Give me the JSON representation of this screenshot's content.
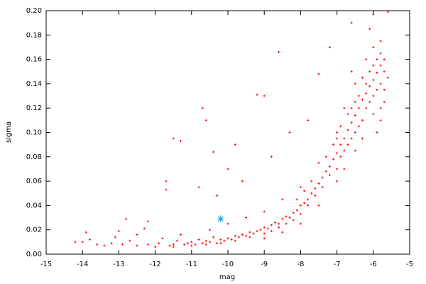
{
  "chart_data": {
    "type": "scatter",
    "x_label": "mag",
    "y_label": "sigma",
    "xlim": [
      -15,
      -5
    ],
    "xticks": [
      -15,
      -14,
      -13,
      -12,
      -11,
      -10,
      -9,
      -8,
      -7,
      -6,
      -5
    ],
    "ylim": [
      0,
      0.2
    ],
    "yticks": [
      {
        "value": 0,
        "label": "0.00"
      },
      {
        "value": 0.02,
        "label": "0.02"
      },
      {
        "value": 0.04,
        "label": "0.04"
      },
      {
        "value": 0.06,
        "label": "0.06"
      },
      {
        "value": 0.08,
        "label": "0.08"
      },
      {
        "value": 0.1,
        "label": "0.10"
      },
      {
        "value": 0.12,
        "label": "0.12"
      },
      {
        "value": 0.14,
        "label": "0.14"
      },
      {
        "value": 0.16,
        "label": "0.16"
      },
      {
        "value": 0.18,
        "label": "0.18"
      },
      {
        "value": 0.2,
        "label": "0.20"
      }
    ],
    "series": [
      {
        "color": "#ff0000",
        "marker": "plus",
        "x": [
          -14.2,
          -14.0,
          -13.8,
          -13.9,
          -13.6,
          -13.4,
          -13.1,
          -13.0,
          -12.9,
          -12.7,
          -12.5,
          -12.3,
          -12.2,
          -12.0,
          -11.9,
          -11.8,
          -11.7,
          -11.6,
          -11.5,
          -11.4,
          -11.3,
          -11.2,
          -11.1,
          -11.0,
          -10.9,
          -10.8,
          -10.7,
          -10.6,
          -10.5,
          -10.4,
          -10.3,
          -10.2,
          -10.1,
          -10.0,
          -9.9,
          -9.8,
          -9.7,
          -9.6,
          -9.5,
          -9.4,
          -9.3,
          -9.2,
          -9.1,
          -9.0,
          -8.9,
          -8.8,
          -8.7,
          -8.6,
          -8.5,
          -8.4,
          -8.3,
          -8.2,
          -8.1,
          -8.0,
          -7.9,
          -7.8,
          -7.7,
          -7.6,
          -7.5,
          -7.4,
          -7.3,
          -7.2,
          -7.1,
          -7.0,
          -6.9,
          -6.8,
          -6.7,
          -6.6,
          -6.5,
          -6.4,
          -6.3,
          -6.2,
          -6.1,
          -6.0,
          -5.9,
          -5.8,
          -5.7,
          -10.5,
          -10.0,
          -9.5,
          -9.0,
          -8.5,
          -8.0,
          -7.5,
          -7.0,
          -6.8,
          -6.5,
          -6.2,
          -6.0,
          -5.8,
          -6.1,
          -6.6,
          -6.0,
          -5.6,
          -9.0,
          -8.5,
          -8.0,
          -7.5,
          -7.0,
          -6.8,
          -6.5,
          -6.3,
          -6.0,
          -5.8,
          -5.7,
          -5.9,
          -12.8,
          -12.2,
          -11.5,
          -11.3,
          -10.7,
          -10.6,
          -10.4,
          -10.0,
          -9.8,
          -9.2,
          -9.0,
          -8.6,
          -7.5,
          -7.2,
          -10.8,
          -11.7,
          -10.3,
          -9.6,
          -8.8,
          -8.3,
          -7.8,
          -7.0,
          -7.0,
          -6.8,
          -6.7,
          -6.6,
          -6.5,
          -6.4,
          -6.3,
          -6.2,
          -6.2,
          -6.1,
          -6.0,
          -5.9,
          -5.9,
          -5.8,
          -5.7,
          -6.4,
          -6.6,
          -6.9,
          -7.2,
          -7.4,
          -7.6,
          -7.8,
          -8.0,
          -8.2,
          -8.4,
          -8.6,
          -8.8,
          -9.0,
          -9.4,
          -9.8,
          -10.2,
          -10.6,
          -11.0,
          -11.5,
          -12.5,
          -13.2,
          -8.1,
          -7.9,
          -7.7,
          -7.3,
          -7.1,
          -6.9,
          -6.7,
          -6.5,
          -6.3,
          -6.1,
          -5.8,
          -6.6,
          -6.0,
          -5.6,
          -5.7,
          -5.8
        ],
        "values": [
          0.01,
          0.01,
          0.012,
          0.018,
          0.008,
          0.007,
          0.014,
          0.019,
          0.008,
          0.011,
          0.016,
          0.021,
          0.008,
          0.006,
          0.009,
          0.013,
          0.06,
          0.007,
          0.008,
          0.011,
          0.016,
          0.008,
          0.009,
          0.01,
          0.008,
          0.012,
          0.009,
          0.011,
          0.01,
          0.014,
          0.009,
          0.012,
          0.011,
          0.013,
          0.012,
          0.015,
          0.014,
          0.016,
          0.015,
          0.018,
          0.017,
          0.019,
          0.02,
          0.022,
          0.021,
          0.024,
          0.026,
          0.025,
          0.029,
          0.031,
          0.03,
          0.034,
          0.036,
          0.04,
          0.042,
          0.045,
          0.05,
          0.054,
          0.058,
          0.063,
          0.068,
          0.072,
          0.078,
          0.083,
          0.09,
          0.095,
          0.102,
          0.108,
          0.114,
          0.12,
          0.127,
          0.132,
          0.138,
          0.143,
          0.149,
          0.155,
          0.16,
          0.02,
          0.025,
          0.03,
          0.035,
          0.045,
          0.055,
          0.075,
          0.1,
          0.12,
          0.14,
          0.16,
          0.17,
          0.175,
          0.185,
          0.19,
          0.197,
          0.199,
          0.013,
          0.018,
          0.025,
          0.04,
          0.06,
          0.07,
          0.085,
          0.095,
          0.115,
          0.12,
          0.135,
          0.1,
          0.029,
          0.027,
          0.095,
          0.093,
          0.12,
          0.11,
          0.084,
          0.07,
          0.09,
          0.131,
          0.13,
          0.166,
          0.148,
          0.17,
          0.055,
          0.053,
          0.048,
          0.06,
          0.08,
          0.1,
          0.11,
          0.07,
          0.095,
          0.085,
          0.09,
          0.12,
          0.1,
          0.13,
          0.11,
          0.14,
          0.12,
          0.15,
          0.13,
          0.16,
          0.135,
          0.14,
          0.15,
          0.105,
          0.095,
          0.08,
          0.065,
          0.055,
          0.048,
          0.04,
          0.033,
          0.028,
          0.025,
          0.022,
          0.019,
          0.017,
          0.014,
          0.011,
          0.009,
          0.008,
          0.007,
          0.006,
          0.007,
          0.009,
          0.045,
          0.052,
          0.06,
          0.08,
          0.09,
          0.105,
          0.115,
          0.125,
          0.145,
          0.125,
          0.165,
          0.15,
          0.155,
          0.145,
          0.125,
          0.11
        ]
      },
      {
        "color": "#00a0d0",
        "marker": "star",
        "x": [
          -10.2
        ],
        "values": [
          0.029
        ]
      }
    ]
  }
}
